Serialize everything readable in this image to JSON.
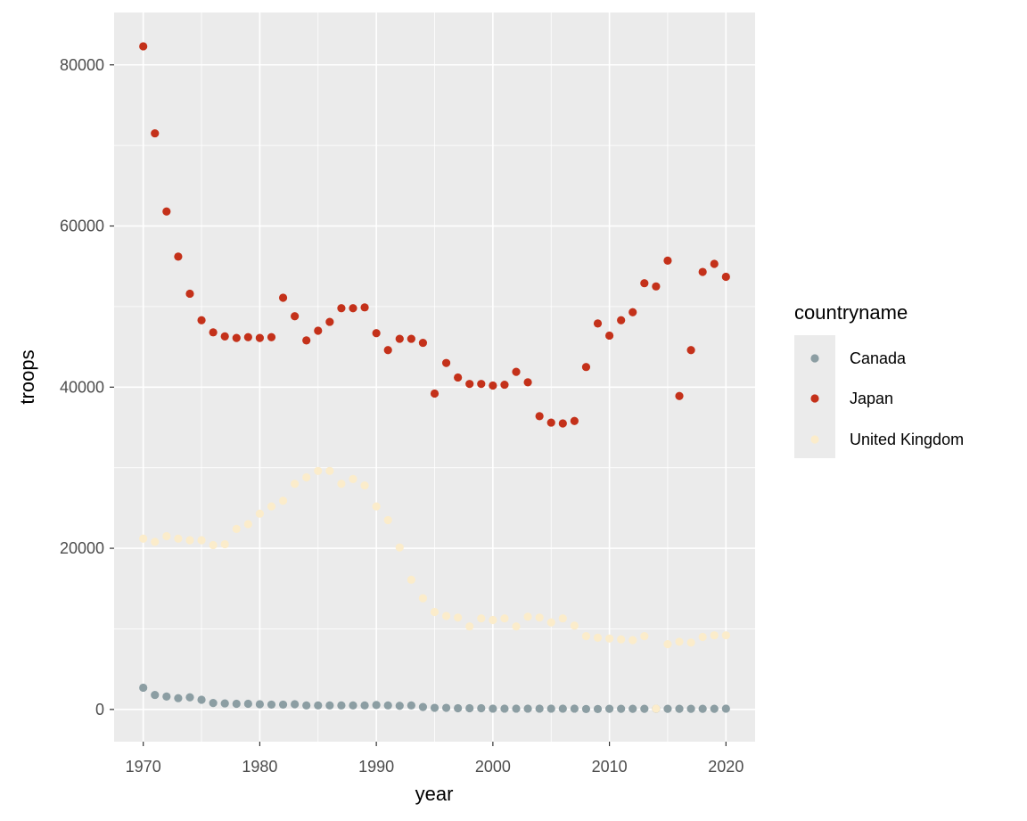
{
  "chart_data": {
    "type": "scatter",
    "title": "",
    "xlabel": "year",
    "ylabel": "troops",
    "xlim": [
      1967.5,
      2022.5
    ],
    "ylim": [
      -4000,
      86500
    ],
    "x_ticks": [
      1970,
      1980,
      1990,
      2000,
      2010,
      2020
    ],
    "y_ticks": [
      0,
      20000,
      40000,
      60000,
      80000
    ],
    "x_tick_labels": [
      "1970",
      "1980",
      "1990",
      "2000",
      "2010",
      "2020"
    ],
    "y_tick_labels": [
      "0",
      "20000",
      "40000",
      "60000",
      "80000"
    ],
    "grid": true,
    "legend": {
      "title": "countryname",
      "position": "right",
      "entries": [
        "Canada",
        "Japan",
        "United Kingdom"
      ]
    },
    "x": [
      1970,
      1971,
      1972,
      1973,
      1974,
      1975,
      1976,
      1977,
      1978,
      1979,
      1980,
      1981,
      1982,
      1983,
      1984,
      1985,
      1986,
      1987,
      1988,
      1989,
      1990,
      1991,
      1992,
      1993,
      1994,
      1995,
      1996,
      1997,
      1998,
      1999,
      2000,
      2001,
      2002,
      2003,
      2004,
      2005,
      2006,
      2007,
      2008,
      2009,
      2010,
      2011,
      2012,
      2013,
      2014,
      2015,
      2016,
      2017,
      2018,
      2019,
      2020
    ],
    "series": [
      {
        "name": "Canada",
        "color": "#8c9ea3",
        "values": [
          2700,
          1800,
          1600,
          1400,
          1500,
          1200,
          800,
          750,
          700,
          700,
          650,
          600,
          600,
          650,
          500,
          500,
          500,
          500,
          500,
          500,
          550,
          500,
          450,
          500,
          300,
          200,
          200,
          150,
          150,
          150,
          100,
          100,
          100,
          100,
          100,
          100,
          100,
          100,
          50,
          50,
          80,
          80,
          80,
          80,
          80,
          80,
          80,
          80,
          80,
          80,
          100
        ]
      },
      {
        "name": "Japan",
        "color": "#c4311a",
        "values": [
          82300,
          71500,
          61800,
          56200,
          51600,
          48300,
          46800,
          46300,
          46100,
          46200,
          46100,
          46200,
          51100,
          48800,
          45800,
          47000,
          48100,
          49800,
          49800,
          49900,
          46700,
          44600,
          46000,
          46000,
          45500,
          39200,
          43000,
          41200,
          40400,
          40400,
          40200,
          40300,
          41900,
          40600,
          36400,
          35600,
          35500,
          35800,
          42500,
          47900,
          46400,
          48300,
          49300,
          52900,
          52500,
          55700,
          38900,
          44600,
          54300,
          55300,
          53700
        ]
      },
      {
        "name": "United Kingdom",
        "color": "#fbeccb",
        "values": [
          21200,
          20800,
          21500,
          21200,
          21000,
          21000,
          20400,
          20500,
          22400,
          23000,
          24300,
          25200,
          25900,
          28000,
          28800,
          29600,
          29600,
          28000,
          28600,
          27800,
          25200,
          23500,
          20100,
          16100,
          13800,
          12100,
          11600,
          11400,
          10300,
          11300,
          11100,
          11300,
          10300,
          11500,
          11400,
          10800,
          11300,
          10400,
          9100,
          8900,
          8800,
          8700,
          8600,
          9100,
          100,
          8100,
          8400,
          8300,
          9000,
          9200,
          9200
        ]
      }
    ]
  }
}
